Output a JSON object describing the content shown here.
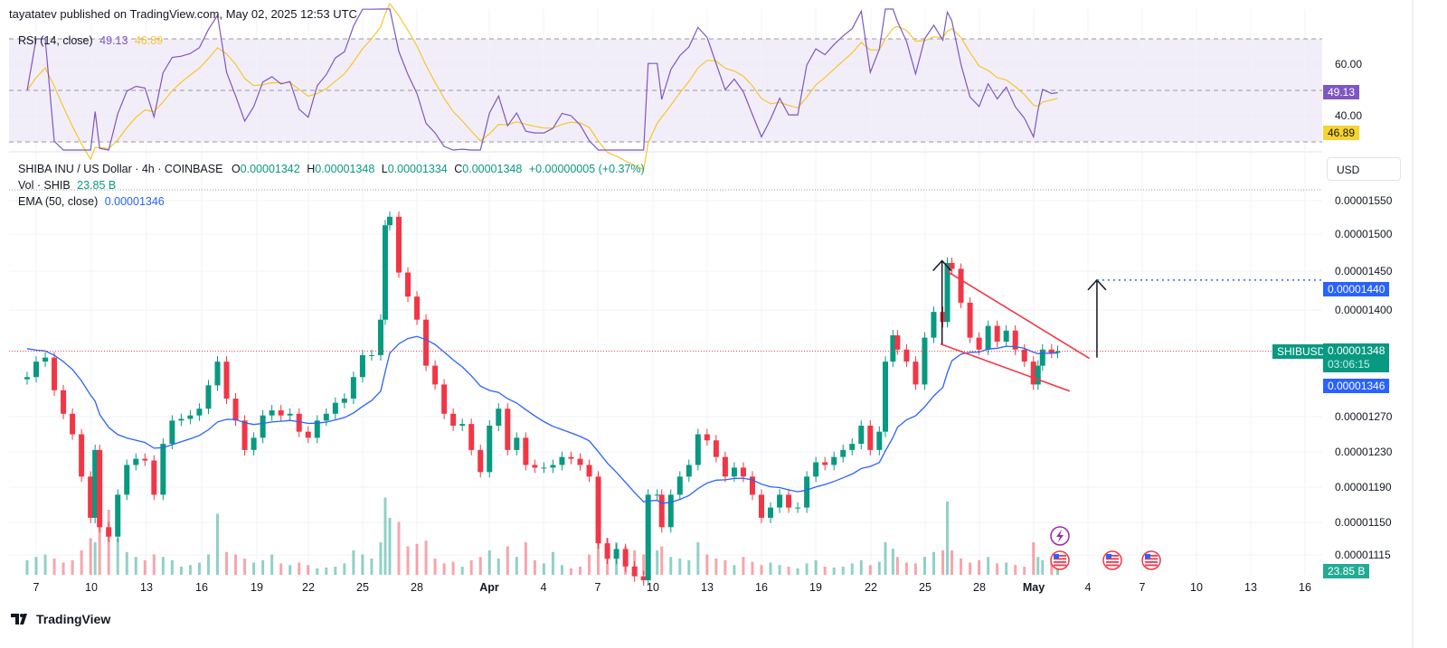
{
  "header": "tayatatev published on TradingView.com, May 02, 2025 12:53 UTC",
  "rsi": {
    "label": "RSI (14, close)",
    "value": "49.13",
    "ma_value": "46.89",
    "ticks": [
      "60.00",
      "40.00"
    ],
    "color": "#7e57c2",
    "ma_color": "#f7c52b"
  },
  "legend": {
    "symbol": "SHIBA INU / US Dollar · 4h · COINBASE",
    "o_label": "O",
    "o": "0.00001342",
    "h_label": "H",
    "h": "0.00001348",
    "l_label": "L",
    "l": "0.00001334",
    "c_label": "C",
    "c": "0.00001348",
    "change": "+0.00000005 (+0.37%)",
    "vol_label": "Vol · SHIB",
    "vol": "23.85 B",
    "ema_label": "EMA (50, close)",
    "ema": "0.00001346"
  },
  "axis": {
    "currency_button": "USD",
    "price_ticks": [
      "0.00001550",
      "0.00001500",
      "0.00001450",
      "0.00001400",
      "0.00001270",
      "0.00001230",
      "0.00001190",
      "0.00001150",
      "0.00001115"
    ],
    "target_tag": "0.00001440",
    "symbol_tag": "SHIBUSD",
    "price_tag": "0.00001348",
    "countdown": "03:06:15",
    "ema_tag": "0.00001346",
    "vol_tag": "23.85 B"
  },
  "dates": [
    "7",
    "10",
    "13",
    "16",
    "19",
    "22",
    "25",
    "28",
    "Apr",
    "4",
    "7",
    "10",
    "13",
    "16",
    "19",
    "22",
    "25",
    "28",
    "May",
    "4",
    "7",
    "10",
    "13",
    "16"
  ],
  "logo": "TradingView",
  "colors": {
    "up": "#089981",
    "down": "#f23645",
    "ema": "#2962ff",
    "target": "#2962ff",
    "pattern": "#f23645"
  },
  "chart_data": {
    "type": "candlestick",
    "title": "SHIBA INU / US Dollar · 4h · COINBASE",
    "y_scale": "log",
    "ylim": [
      1.085e-05,
      1.61e-05
    ],
    "xlim": [
      "2025-03-06",
      "2025-05-17"
    ],
    "grid": true,
    "points_columns": [
      "time (2025, UTC)",
      "close",
      "volume (B)"
    ],
    "points": [
      [
        "03-06 12:00",
        1.316e-05,
        18
      ],
      [
        "03-07 00:00",
        1.335e-05,
        22
      ],
      [
        "03-07 12:00",
        1.34e-05,
        25
      ],
      [
        "03-08 00:00",
        1.3e-05,
        20
      ],
      [
        "03-08 12:00",
        1.272e-05,
        15
      ],
      [
        "03-09 00:00",
        1.248e-05,
        18
      ],
      [
        "03-09 12:00",
        1.2e-05,
        30
      ],
      [
        "03-10 00:00",
        1.155e-05,
        45
      ],
      [
        "03-10 06:00",
        1.23e-05,
        40
      ],
      [
        "03-10 12:00",
        1.145e-05,
        62
      ],
      [
        "03-11 00:00",
        1.135e-05,
        80
      ],
      [
        "03-11 12:00",
        1.18e-05,
        45
      ],
      [
        "03-12 00:00",
        1.213e-05,
        28
      ],
      [
        "03-12 12:00",
        1.22e-05,
        22
      ],
      [
        "03-13 00:00",
        1.218e-05,
        18
      ],
      [
        "03-13 12:00",
        1.18e-05,
        25
      ],
      [
        "03-14 00:00",
        1.237e-05,
        22
      ],
      [
        "03-14 12:00",
        1.264e-05,
        18
      ],
      [
        "03-15 00:00",
        1.266e-05,
        10
      ],
      [
        "03-15 12:00",
        1.27e-05,
        12
      ],
      [
        "03-16 00:00",
        1.278e-05,
        15
      ],
      [
        "03-16 12:00",
        1.306e-05,
        25
      ],
      [
        "03-17 00:00",
        1.335e-05,
        75
      ],
      [
        "03-17 12:00",
        1.29e-05,
        28
      ],
      [
        "03-18 00:00",
        1.264e-05,
        25
      ],
      [
        "03-18 12:00",
        1.23e-05,
        20
      ],
      [
        "03-19 00:00",
        1.244e-05,
        15
      ],
      [
        "03-19 12:00",
        1.27e-05,
        18
      ],
      [
        "03-20 00:00",
        1.276e-05,
        25
      ],
      [
        "03-20 12:00",
        1.27e-05,
        14
      ],
      [
        "03-21 00:00",
        1.272e-05,
        12
      ],
      [
        "03-21 12:00",
        1.251e-05,
        15
      ],
      [
        "03-22 00:00",
        1.244e-05,
        12
      ],
      [
        "03-22 12:00",
        1.264e-05,
        8
      ],
      [
        "03-23 00:00",
        1.272e-05,
        9
      ],
      [
        "03-23 12:00",
        1.285e-05,
        10
      ],
      [
        "03-24 00:00",
        1.29e-05,
        14
      ],
      [
        "03-24 12:00",
        1.316e-05,
        30
      ],
      [
        "03-25 00:00",
        1.343e-05,
        25
      ],
      [
        "03-25 12:00",
        1.343e-05,
        20
      ],
      [
        "03-26 00:00",
        1.388e-05,
        40
      ],
      [
        "03-26 06:00",
        1.515e-05,
        95
      ],
      [
        "03-26 12:00",
        1.527e-05,
        70
      ],
      [
        "03-27 00:00",
        1.45e-05,
        65
      ],
      [
        "03-27 12:00",
        1.418e-05,
        35
      ],
      [
        "03-28 00:00",
        1.388e-05,
        38
      ],
      [
        "03-28 12:00",
        1.33e-05,
        42
      ],
      [
        "03-29 00:00",
        1.307e-05,
        20
      ],
      [
        "03-29 12:00",
        1.272e-05,
        14
      ],
      [
        "03-30 00:00",
        1.258e-05,
        16
      ],
      [
        "03-30 12:00",
        1.26e-05,
        10
      ],
      [
        "03-31 00:00",
        1.23e-05,
        18
      ],
      [
        "03-31 12:00",
        1.205e-05,
        22
      ],
      [
        "04-01 00:00",
        1.258e-05,
        30
      ],
      [
        "04-01 12:00",
        1.278e-05,
        20
      ],
      [
        "04-02 00:00",
        1.23e-05,
        35
      ],
      [
        "04-02 12:00",
        1.244e-05,
        22
      ],
      [
        "04-03 00:00",
        1.213e-05,
        40
      ],
      [
        "04-03 12:00",
        1.21e-05,
        18
      ],
      [
        "04-04 00:00",
        1.21e-05,
        14
      ],
      [
        "04-04 12:00",
        1.213e-05,
        28
      ],
      [
        "04-05 00:00",
        1.222e-05,
        12
      ],
      [
        "04-05 12:00",
        1.22e-05,
        8
      ],
      [
        "04-06 00:00",
        1.213e-05,
        10
      ],
      [
        "04-06 12:00",
        1.2e-05,
        25
      ],
      [
        "04-07 00:00",
        1.128e-05,
        55
      ],
      [
        "04-07 12:00",
        1.112e-05,
        45
      ],
      [
        "04-08 00:00",
        1.122e-05,
        40
      ],
      [
        "04-08 12:00",
        1.104e-05,
        35
      ],
      [
        "04-09 00:00",
        1.094e-05,
        30
      ],
      [
        "04-09 12:00",
        1.09e-05,
        25
      ],
      [
        "04-09 18:00",
        1.18e-05,
        62
      ],
      [
        "04-10 06:00",
        1.18e-05,
        30
      ],
      [
        "04-10 12:00",
        1.145e-05,
        35
      ],
      [
        "04-11 00:00",
        1.18e-05,
        22
      ],
      [
        "04-11 12:00",
        1.2e-05,
        20
      ],
      [
        "04-12 00:00",
        1.213e-05,
        18
      ],
      [
        "04-12 12:00",
        1.248e-05,
        40
      ],
      [
        "04-13 00:00",
        1.241e-05,
        25
      ],
      [
        "04-13 12:00",
        1.222e-05,
        20
      ],
      [
        "04-14 00:00",
        1.2e-05,
        18
      ],
      [
        "04-14 12:00",
        1.21e-05,
        12
      ],
      [
        "04-15 00:00",
        1.2e-05,
        22
      ],
      [
        "04-15 12:00",
        1.18e-05,
        16
      ],
      [
        "04-16 00:00",
        1.155e-05,
        12
      ],
      [
        "04-16 12:00",
        1.166e-05,
        15
      ],
      [
        "04-17 00:00",
        1.18e-05,
        12
      ],
      [
        "04-17 12:00",
        1.166e-05,
        10
      ],
      [
        "04-18 00:00",
        1.166e-05,
        8
      ],
      [
        "04-18 12:00",
        1.2e-05,
        14
      ],
      [
        "04-19 00:00",
        1.216e-05,
        18
      ],
      [
        "04-19 12:00",
        1.213e-05,
        10
      ],
      [
        "04-20 00:00",
        1.222e-05,
        9
      ],
      [
        "04-20 12:00",
        1.23e-05,
        10
      ],
      [
        "04-21 00:00",
        1.237e-05,
        14
      ],
      [
        "04-21 12:00",
        1.258e-05,
        18
      ],
      [
        "04-22 00:00",
        1.23e-05,
        12
      ],
      [
        "04-22 12:00",
        1.251e-05,
        16
      ],
      [
        "04-22 20:00",
        1.335e-05,
        40
      ],
      [
        "04-23 06:00",
        1.368e-05,
        32
      ],
      [
        "04-23 12:00",
        1.35e-05,
        22
      ],
      [
        "04-24 00:00",
        1.335e-05,
        15
      ],
      [
        "04-24 12:00",
        1.307e-05,
        14
      ],
      [
        "04-25 00:00",
        1.365e-05,
        22
      ],
      [
        "04-25 12:00",
        1.398e-05,
        28
      ],
      [
        "04-26 00:00",
        1.385e-05,
        30
      ],
      [
        "04-26 06:00",
        1.463e-05,
        90
      ],
      [
        "04-26 12:00",
        1.455e-05,
        30
      ],
      [
        "04-27 00:00",
        1.41e-05,
        20
      ],
      [
        "04-27 12:00",
        1.365e-05,
        15
      ],
      [
        "04-28 00:00",
        1.35e-05,
        18
      ],
      [
        "04-28 12:00",
        1.38e-05,
        22
      ],
      [
        "04-29 00:00",
        1.36e-05,
        14
      ],
      [
        "04-29 12:00",
        1.374e-05,
        15
      ],
      [
        "04-30 00:00",
        1.35e-05,
        12
      ],
      [
        "04-30 12:00",
        1.335e-05,
        10
      ],
      [
        "05-01 00:00",
        1.307e-05,
        40
      ],
      [
        "05-01 06:00",
        1.33e-05,
        22
      ],
      [
        "05-01 12:00",
        1.35e-05,
        18
      ],
      [
        "05-02 00:00",
        1.346e-05,
        16
      ],
      [
        "05-02 08:00",
        1.348e-05,
        23.85
      ]
    ],
    "annotations": {
      "falling_wedge_upper": [
        [
          "04-26 05:00",
          1.452e-05
        ],
        [
          "05-04 02:00",
          1.339e-05
        ]
      ],
      "falling_wedge_lower": [
        [
          "04-25 21:00",
          1.357e-05
        ],
        [
          "05-03 00:00",
          1.299e-05
        ]
      ],
      "arrow_1": [
        [
          "04-25 23:00",
          1.357e-05
        ],
        [
          "04-25 23:00",
          1.466e-05
        ]
      ],
      "arrow_2": [
        [
          "05-04 12:00",
          1.34e-05
        ],
        [
          "05-04 12:00",
          1.44e-05
        ]
      ],
      "target_line": 1.44e-05
    }
  }
}
